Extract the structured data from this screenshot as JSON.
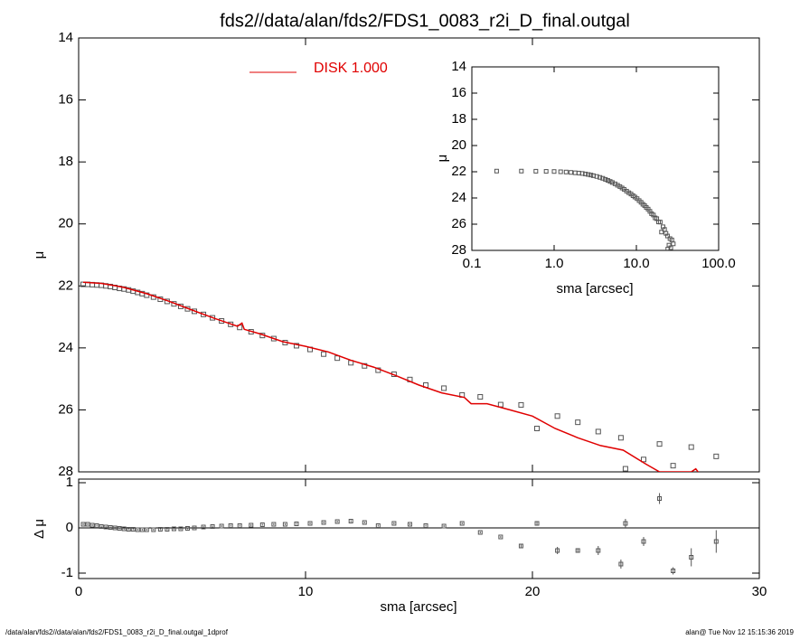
{
  "chart_data": [
    {
      "type": "scatter",
      "title": "fds2//data/alan/fds2/FDS1_0083_r2i_D_final.outgal",
      "y_label": "μ",
      "xlim": [
        0,
        30
      ],
      "ylim": [
        28,
        14
      ],
      "xticks": [
        0,
        10,
        20,
        30
      ],
      "yticks": [
        14,
        16,
        18,
        20,
        22,
        24,
        26,
        28
      ],
      "points": {
        "color": "#555555",
        "x": [
          0.2,
          0.4,
          0.6,
          0.8,
          1.0,
          1.2,
          1.4,
          1.6,
          1.8,
          2.0,
          2.2,
          2.4,
          2.6,
          2.8,
          3.0,
          3.3,
          3.6,
          3.9,
          4.2,
          4.5,
          4.8,
          5.1,
          5.5,
          5.9,
          6.3,
          6.7,
          7.1,
          7.6,
          8.1,
          8.6,
          9.1,
          9.6,
          10.2,
          10.8,
          11.4,
          12.0,
          12.6,
          13.2,
          13.9,
          14.6,
          15.3,
          16.1,
          16.9,
          17.7,
          18.6,
          19.5,
          20.2,
          21.1,
          22.0,
          22.9,
          23.9,
          24.1,
          24.9,
          25.6,
          26.2,
          27.0,
          28.1
        ],
        "values": [
          21.95,
          21.95,
          21.96,
          21.97,
          21.98,
          22.0,
          22.02,
          22.05,
          22.08,
          22.1,
          22.13,
          22.17,
          22.21,
          22.25,
          22.3,
          22.36,
          22.43,
          22.5,
          22.58,
          22.66,
          22.74,
          22.82,
          22.92,
          23.03,
          23.13,
          23.24,
          23.34,
          23.48,
          23.6,
          23.7,
          23.83,
          23.93,
          24.05,
          24.2,
          24.33,
          24.48,
          24.58,
          24.72,
          24.85,
          25.02,
          25.2,
          25.3,
          25.52,
          25.58,
          25.83,
          25.84,
          26.6,
          26.2,
          26.4,
          26.7,
          26.9,
          27.9,
          27.6,
          27.1,
          27.8,
          27.2,
          27.5
        ]
      },
      "series": [
        {
          "name": "DISK  1.000",
          "color": "#e00000",
          "x": [
            0.2,
            1,
            1.5,
            2,
            3,
            4,
            5,
            6,
            7,
            7.2,
            7.3,
            8,
            9,
            10,
            11,
            12,
            13,
            13.3,
            14,
            15,
            16,
            17,
            17.3,
            18,
            19,
            20,
            21,
            22,
            23,
            24,
            25,
            25.6,
            26.5,
            27,
            27.2,
            27.6
          ],
          "values": [
            21.88,
            21.92,
            21.98,
            22.05,
            22.25,
            22.5,
            22.78,
            23.05,
            23.3,
            23.2,
            23.4,
            23.55,
            23.8,
            23.95,
            24.13,
            24.4,
            24.62,
            24.7,
            24.9,
            25.2,
            25.45,
            25.6,
            25.8,
            25.8,
            26.0,
            26.2,
            26.6,
            26.9,
            27.15,
            27.3,
            27.75,
            28.0,
            28.0,
            28.0,
            27.9,
            28.3
          ]
        }
      ]
    },
    {
      "type": "errorbar",
      "x_label": "sma [arcsec]",
      "y_label": "Δ μ",
      "xlim": [
        0,
        30
      ],
      "ylim": [
        -1.12,
        1.08
      ],
      "xticks": [
        0,
        10,
        20,
        30
      ],
      "yticks": [
        1,
        0,
        -1
      ],
      "color": "#555555",
      "x": [
        0.2,
        0.4,
        0.6,
        0.8,
        1.0,
        1.2,
        1.4,
        1.6,
        1.8,
        2.0,
        2.2,
        2.4,
        2.6,
        2.8,
        3.0,
        3.3,
        3.6,
        3.9,
        4.2,
        4.5,
        4.8,
        5.1,
        5.5,
        5.9,
        6.3,
        6.7,
        7.1,
        7.6,
        8.1,
        8.6,
        9.1,
        9.6,
        10.2,
        10.8,
        11.4,
        12.0,
        12.6,
        13.2,
        13.9,
        14.6,
        15.3,
        16.1,
        16.9,
        17.7,
        18.6,
        19.5,
        20.2,
        21.1,
        22.0,
        22.9,
        23.9,
        24.1,
        24.9,
        25.6,
        26.2,
        27.0,
        28.1
      ],
      "values": [
        0.08,
        0.08,
        0.06,
        0.05,
        0.03,
        0.02,
        0.01,
        0.0,
        -0.01,
        -0.02,
        -0.03,
        -0.03,
        -0.04,
        -0.04,
        -0.04,
        -0.04,
        -0.03,
        -0.03,
        -0.02,
        -0.02,
        -0.01,
        0.0,
        0.02,
        0.03,
        0.04,
        0.05,
        0.05,
        0.06,
        0.07,
        0.08,
        0.08,
        0.09,
        0.1,
        0.12,
        0.14,
        0.15,
        0.12,
        0.05,
        0.1,
        0.08,
        0.05,
        0.04,
        0.1,
        -0.1,
        -0.2,
        -0.4,
        0.1,
        -0.5,
        -0.5,
        -0.5,
        -0.8,
        0.1,
        -0.3,
        0.65,
        -0.95,
        -0.65,
        -0.3
      ],
      "errors": [
        0.02,
        0.02,
        0.02,
        0.02,
        0.02,
        0.02,
        0.02,
        0.02,
        0.02,
        0.02,
        0.02,
        0.02,
        0.02,
        0.02,
        0.02,
        0.02,
        0.02,
        0.02,
        0.02,
        0.02,
        0.02,
        0.02,
        0.02,
        0.02,
        0.02,
        0.02,
        0.02,
        0.02,
        0.02,
        0.02,
        0.02,
        0.02,
        0.02,
        0.02,
        0.02,
        0.02,
        0.02,
        0.02,
        0.02,
        0.02,
        0.02,
        0.02,
        0.02,
        0.02,
        0.02,
        0.03,
        0.05,
        0.08,
        0.05,
        0.1,
        0.1,
        0.1,
        0.1,
        0.12,
        0.08,
        0.2,
        0.25
      ]
    },
    {
      "type": "scatter",
      "x_label": "sma [arcsec]",
      "y_label": "μ",
      "log_x": true,
      "xlim": [
        0.1,
        100
      ],
      "ylim": [
        28,
        14
      ],
      "xticks": [
        0.1,
        {
          "value": 1,
          "label": "1.0"
        },
        {
          "value": 10,
          "label": "10.0"
        },
        {
          "value": 100,
          "label": "100.0"
        }
      ],
      "yticks": [
        14,
        16,
        18,
        20,
        22,
        24,
        26,
        28
      ]
    }
  ],
  "footer": {
    "left": "/data/alan/fds2//data/alan/fds2/FDS1_0083_r2i_D_final.outgal_1dprof",
    "right": "alan@  Tue Nov 12 15:15:36 2019"
  }
}
